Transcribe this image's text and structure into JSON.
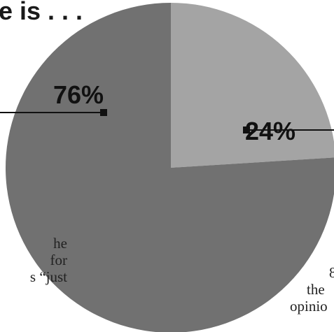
{
  "header": {
    "title_fragment": "e is . . ."
  },
  "chart_data": {
    "type": "pie",
    "title": "",
    "slices": [
      {
        "label": "76%",
        "value": 76,
        "color": "#717171"
      },
      {
        "label": "24%",
        "value": 24,
        "color": "#a4a4a4"
      }
    ],
    "start_angle_deg": 0,
    "direction": "clockwise",
    "legend": "none"
  },
  "left_text": {
    "lines": [
      "he",
      "for",
      "s “just"
    ]
  },
  "right_text": {
    "lines": [
      "8",
      "the",
      "opinio"
    ]
  }
}
